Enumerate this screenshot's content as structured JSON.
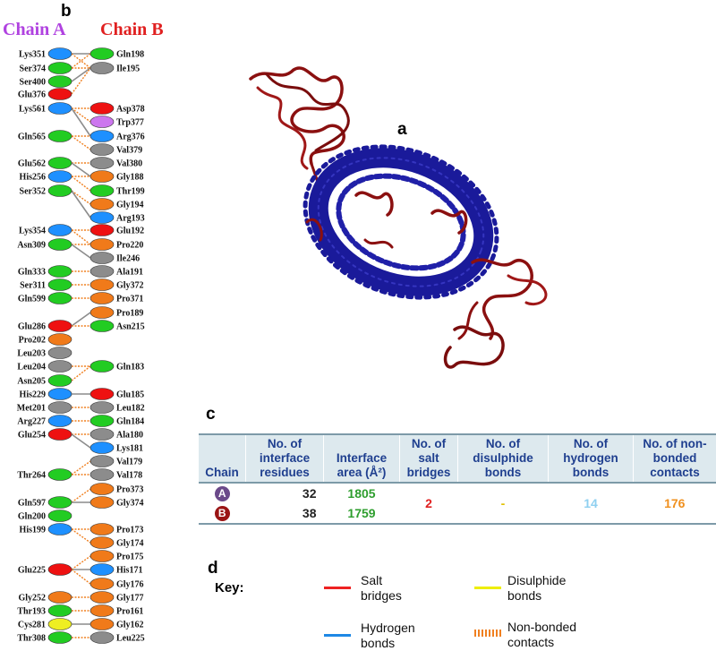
{
  "panels": {
    "a": "a",
    "b": "b",
    "c": "c",
    "d": "d"
  },
  "chain_a_title": "Chain A",
  "chain_b_title": "Chain B",
  "colors": {
    "chain_a_title": "#b042e0",
    "chain_b_title": "#e02020",
    "blue": "#1e90ff",
    "green": "#22cc22",
    "red": "#ee1111",
    "grey": "#8c8c8c",
    "orange": "#f07a1a",
    "purple": "#cc77ee",
    "yellow": "#eeee22",
    "protein_red": "#8b1010",
    "protein_blue": "#1a1a9a",
    "salt_bridge": "#ee2222",
    "disulphide": "#eeee00",
    "hydrogen": "#1e88e5",
    "nonbonded": "#f08020"
  },
  "chain_a_residues": [
    {
      "label": "Lys351",
      "color": "blue"
    },
    {
      "label": "Ser374",
      "color": "green"
    },
    {
      "label": "Ser400",
      "color": "green"
    },
    {
      "label": "Glu376",
      "color": "red"
    },
    {
      "label": "Lys561",
      "color": "blue"
    },
    {
      "label": "Gln565",
      "color": "green"
    },
    {
      "label": "Glu562",
      "color": "green"
    },
    {
      "label": "His256",
      "color": "blue"
    },
    {
      "label": "Ser352",
      "color": "green"
    },
    {
      "label": "Lys354",
      "color": "blue"
    },
    {
      "label": "Asn309",
      "color": "green"
    },
    {
      "label": "Gln333",
      "color": "green"
    },
    {
      "label": "Ser311",
      "color": "green"
    },
    {
      "label": "Gln599",
      "color": "green"
    },
    {
      "label": "Glu286",
      "color": "red"
    },
    {
      "label": "Pro202",
      "color": "orange"
    },
    {
      "label": "Leu203",
      "color": "grey"
    },
    {
      "label": "Leu204",
      "color": "grey"
    },
    {
      "label": "Asn205",
      "color": "green"
    },
    {
      "label": "His229",
      "color": "blue"
    },
    {
      "label": "Met201",
      "color": "grey"
    },
    {
      "label": "Arg227",
      "color": "blue"
    },
    {
      "label": "Glu254",
      "color": "red"
    },
    {
      "label": "Thr264",
      "color": "green"
    },
    {
      "label": "Gln597",
      "color": "green"
    },
    {
      "label": "Gln200",
      "color": "green"
    },
    {
      "label": "His199",
      "color": "blue"
    },
    {
      "label": "Glu225",
      "color": "red"
    },
    {
      "label": "Gly252",
      "color": "orange"
    },
    {
      "label": "Thr193",
      "color": "green"
    },
    {
      "label": "Cys281",
      "color": "yellow"
    },
    {
      "label": "Thr308",
      "color": "green"
    }
  ],
  "chain_b_residues": [
    {
      "label": "Gln198",
      "color": "green"
    },
    {
      "label": "Ile195",
      "color": "grey"
    },
    {
      "label": "Asp378",
      "color": "red"
    },
    {
      "label": "Trp377",
      "color": "purple"
    },
    {
      "label": "Arg376",
      "color": "blue"
    },
    {
      "label": "Val379",
      "color": "grey"
    },
    {
      "label": "Val380",
      "color": "grey"
    },
    {
      "label": "Gly188",
      "color": "orange"
    },
    {
      "label": "Thr199",
      "color": "green"
    },
    {
      "label": "Gly194",
      "color": "orange"
    },
    {
      "label": "Arg193",
      "color": "blue"
    },
    {
      "label": "Glu192",
      "color": "red"
    },
    {
      "label": "Pro220",
      "color": "orange"
    },
    {
      "label": "Ile246",
      "color": "grey"
    },
    {
      "label": "Ala191",
      "color": "grey"
    },
    {
      "label": "Gly372",
      "color": "orange"
    },
    {
      "label": "Pro371",
      "color": "orange"
    },
    {
      "label": "Pro189",
      "color": "orange"
    },
    {
      "label": "Asn215",
      "color": "green"
    },
    {
      "label": "Gln183",
      "color": "green"
    },
    {
      "label": "Glu185",
      "color": "red"
    },
    {
      "label": "Leu182",
      "color": "grey"
    },
    {
      "label": "Gln184",
      "color": "green"
    },
    {
      "label": "Ala180",
      "color": "grey"
    },
    {
      "label": "Lys181",
      "color": "blue"
    },
    {
      "label": "Val179",
      "color": "grey"
    },
    {
      "label": "Val178",
      "color": "grey"
    },
    {
      "label": "Pro373",
      "color": "orange"
    },
    {
      "label": "Gly374",
      "color": "orange"
    },
    {
      "label": "Pro173",
      "color": "orange"
    },
    {
      "label": "Gly174",
      "color": "orange"
    },
    {
      "label": "Pro175",
      "color": "orange"
    },
    {
      "label": "His171",
      "color": "blue"
    },
    {
      "label": "Gly176",
      "color": "orange"
    },
    {
      "label": "Gly177",
      "color": "orange"
    },
    {
      "label": "Pro161",
      "color": "orange"
    },
    {
      "label": "Gly162",
      "color": "orange"
    },
    {
      "label": "Leu225",
      "color": "grey"
    }
  ],
  "table": {
    "headers": [
      "Chain",
      "No. of interface residues",
      "Interface area (Å²)",
      "No. of salt bridges",
      "No. of disulphide bonds",
      "No. of hydrogen bonds",
      "No. of non-bonded contacts"
    ],
    "rows": [
      {
        "chain": "A",
        "residues": "32",
        "area": "1805"
      },
      {
        "chain": "B",
        "residues": "38",
        "area": "1759"
      }
    ],
    "salt_bridges": "2",
    "disulphide_bonds": "-",
    "hydrogen_bonds": "14",
    "nonbonded_contacts": "176"
  },
  "key": {
    "title": "Key:",
    "salt_bridges": "Salt bridges",
    "disulphide_bonds": "Disulphide bonds",
    "hydrogen_bonds": "Hydrogen bonds",
    "nonbonded_contacts": "Non-bonded contacts"
  }
}
